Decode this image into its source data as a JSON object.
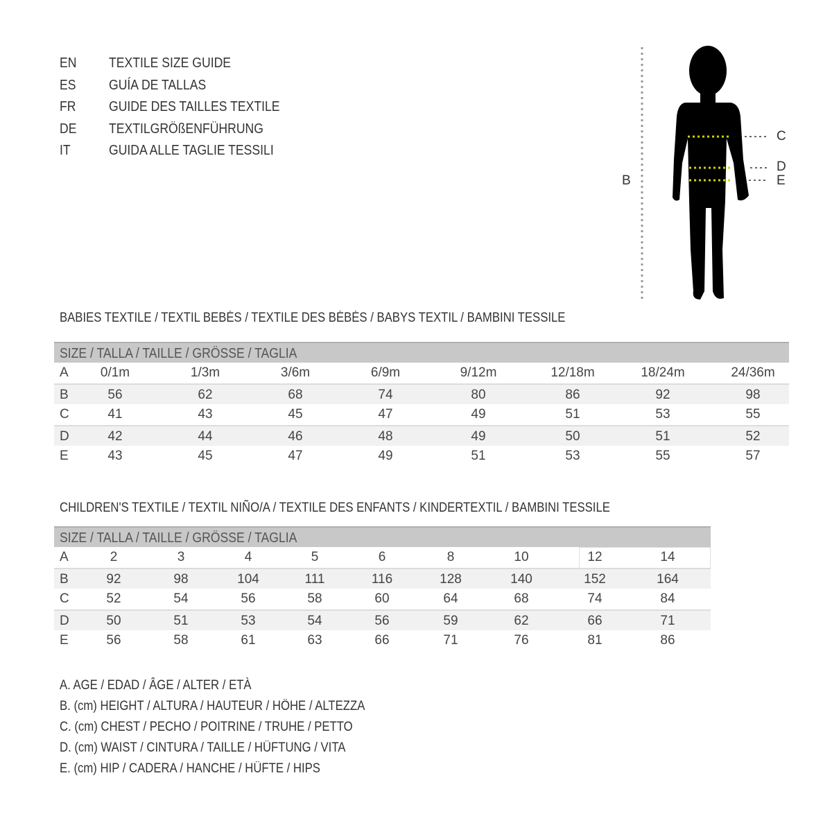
{
  "header": {
    "languages": [
      {
        "code": "EN",
        "title": "TEXTILE SIZE GUIDE"
      },
      {
        "code": "ES",
        "title": "GUÍA DE TALLAS"
      },
      {
        "code": "FR",
        "title": "GUIDE DES TAILLES TEXTILE"
      },
      {
        "code": "DE",
        "title": "TEXTILGRÖßENFÜHRUNG"
      },
      {
        "code": "IT",
        "title": "GUIDA ALLE TAGLIE TESSILI"
      }
    ]
  },
  "figure": {
    "label_b": "B",
    "label_c": "C",
    "label_d": "D",
    "label_e": "E",
    "measure_line_color": "#c8d400"
  },
  "babies": {
    "title": "BABIES TEXTILE / TEXTIL BEBÉS / TEXTILE DES BÉBÉS / BABYS TEXTIL  / BAMBINI TESSILE",
    "header": "SIZE / TALLA / TAILLE / GRÖSSE / TAGLIA",
    "rows": [
      {
        "label": "A",
        "values": [
          "0/1m",
          "1/3m",
          "3/6m",
          "6/9m",
          "9/12m",
          "12/18m",
          "18/24m",
          "24/36m"
        ]
      },
      {
        "label": "B",
        "values": [
          "56",
          "62",
          "68",
          "74",
          "80",
          "86",
          "92",
          "98"
        ]
      },
      {
        "label": "C",
        "values": [
          "41",
          "43",
          "45",
          "47",
          "49",
          "51",
          "53",
          "55"
        ]
      },
      {
        "label": "D",
        "values": [
          "42",
          "44",
          "46",
          "48",
          "49",
          "50",
          "51",
          "52"
        ]
      },
      {
        "label": "E",
        "values": [
          "43",
          "45",
          "47",
          "49",
          "51",
          "53",
          "55",
          "57"
        ]
      }
    ]
  },
  "children": {
    "title": "CHILDREN'S TEXTILE / TEXTIL NIÑO/A / TEXTILE DES ENFANTS / KINDERTEXTIL / BAMBINI TESSILE",
    "header": "SIZE / TALLA / TAILLE / GRÖSSE / TAGLIA",
    "rows": [
      {
        "label": "A",
        "values": [
          "2",
          "3",
          "4",
          "5",
          "6",
          "8",
          "10",
          "12",
          "14"
        ]
      },
      {
        "label": "B",
        "values": [
          "92",
          "98",
          "104",
          "111",
          "116",
          "128",
          "140",
          "152",
          "164"
        ]
      },
      {
        "label": "C",
        "values": [
          "52",
          "54",
          "56",
          "58",
          "60",
          "64",
          "68",
          "74",
          "84"
        ]
      },
      {
        "label": "D",
        "values": [
          "50",
          "51",
          "53",
          "54",
          "56",
          "59",
          "62",
          "66",
          "71"
        ]
      },
      {
        "label": "E",
        "values": [
          "56",
          "58",
          "61",
          "63",
          "66",
          "71",
          "76",
          "81",
          "86"
        ]
      }
    ]
  },
  "legend": [
    "A. AGE / EDAD / ÂGE / ALTER / ETÀ",
    "B. (cm) HEIGHT / ALTURA / HAUTEUR / HÖHE / ALTEZZA",
    "C. (cm) CHEST / PECHO / POITRINE / TRUHE / PETTO",
    "D. (cm) WAIST / CINTURA / TAILLE / HÜFTUNG / VITA",
    "E. (cm) HIP / CADERA / HANCHE / HÜFTE / HIPS"
  ]
}
